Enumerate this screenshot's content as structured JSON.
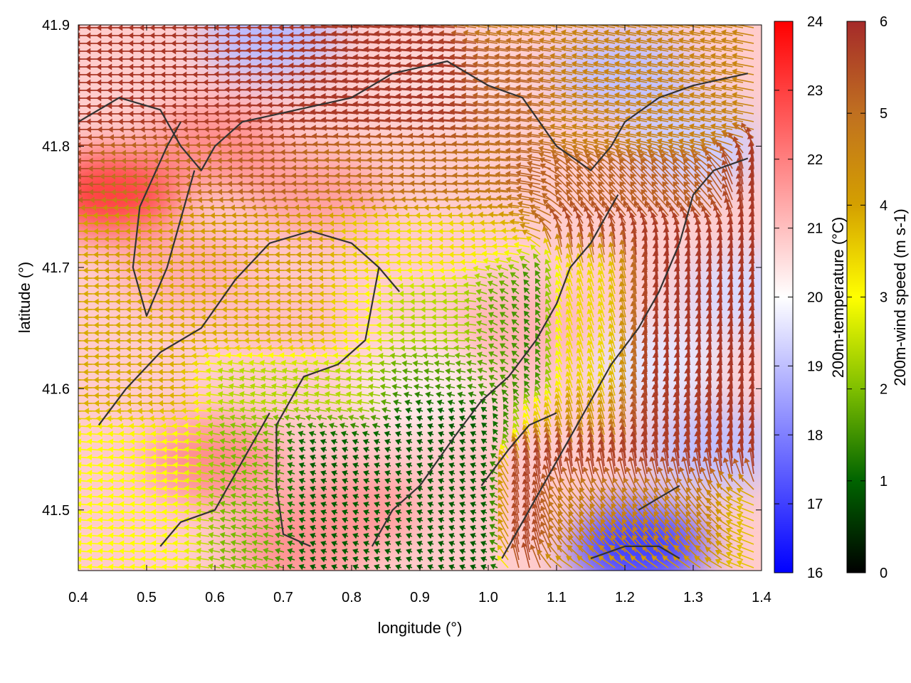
{
  "chart_data": {
    "type": "heatmap",
    "title": "",
    "xlabel": "longitude (°)",
    "ylabel": "latitude (°)",
    "xlim": [
      0.4,
      1.4
    ],
    "ylim": [
      41.45,
      41.9
    ],
    "x_ticks": [
      "0.4",
      "0.5",
      "0.6",
      "0.7",
      "0.8",
      "0.9",
      "1.0",
      "1.1",
      "1.2",
      "1.3",
      "1.4"
    ],
    "y_ticks": [
      "41.5",
      "41.6",
      "41.7",
      "41.8",
      "41.9"
    ],
    "grid": false,
    "series": [
      {
        "name": "200m-temperature (°C)",
        "kind": "color field",
        "colorbar": {
          "label": "200m-temperature (°C)",
          "range": [
            16,
            24
          ],
          "ticks": [
            "16",
            "17",
            "18",
            "19",
            "20",
            "21",
            "22",
            "23",
            "24"
          ],
          "colors": [
            "#0000ff",
            "#ffffff",
            "#ff0000"
          ]
        },
        "regions": [
          {
            "lon": 0.45,
            "lat": 41.76,
            "value": 23.0
          },
          {
            "lon": 0.6,
            "lat": 41.8,
            "value": 21.8
          },
          {
            "lon": 0.75,
            "lat": 41.76,
            "value": 21.5
          },
          {
            "lon": 0.55,
            "lat": 41.7,
            "value": 21.3
          },
          {
            "lon": 0.7,
            "lat": 41.66,
            "value": 21.0
          },
          {
            "lon": 0.6,
            "lat": 41.54,
            "value": 21.8
          },
          {
            "lon": 0.8,
            "lat": 41.5,
            "value": 21.6
          },
          {
            "lon": 0.72,
            "lat": 41.47,
            "value": 21.7
          },
          {
            "lon": 0.9,
            "lat": 41.6,
            "value": 20.3
          },
          {
            "lon": 1.05,
            "lat": 41.65,
            "value": 21.2
          },
          {
            "lon": 1.02,
            "lat": 41.52,
            "value": 20.9
          },
          {
            "lon": 0.95,
            "lat": 41.85,
            "value": 20.6
          },
          {
            "lon": 0.68,
            "lat": 41.89,
            "value": 18.9
          },
          {
            "lon": 1.2,
            "lat": 41.86,
            "value": 19.0
          },
          {
            "lon": 1.3,
            "lat": 41.8,
            "value": 19.2
          },
          {
            "lon": 1.25,
            "lat": 41.62,
            "value": 19.6
          },
          {
            "lon": 1.33,
            "lat": 41.55,
            "value": 19.0
          },
          {
            "lon": 1.22,
            "lat": 41.47,
            "value": 17.0
          },
          {
            "lon": 1.38,
            "lat": 41.68,
            "value": 19.4
          }
        ]
      },
      {
        "name": "200m-wind speed (m s-1)",
        "kind": "vector field",
        "colorbar": {
          "label": "200m-wind speed (m s-1)",
          "range": [
            0,
            6
          ],
          "ticks": [
            "0",
            "1",
            "2",
            "3",
            "4",
            "5",
            "6"
          ],
          "colors": [
            "#000000",
            "#006400",
            "#7fbf00",
            "#ffff00",
            "#d4a000",
            "#c07020",
            "#a52a2a"
          ]
        },
        "regions": [
          {
            "lon_range": [
              0.4,
              0.7
            ],
            "lat_range": [
              41.78,
              41.88
            ],
            "direction_deg": 180,
            "speed": 5.8
          },
          {
            "lon_range": [
              0.7,
              1.05
            ],
            "lat_range": [
              41.78,
              41.86
            ],
            "direction_deg": 175,
            "speed": 5.8
          },
          {
            "lon_range": [
              0.5,
              1.0
            ],
            "lat_range": [
              41.72,
              41.78
            ],
            "direction_deg": 180,
            "speed": 4.2
          },
          {
            "lon_range": [
              0.4,
              0.8
            ],
            "lat_range": [
              41.6,
              41.72
            ],
            "direction_deg": 180,
            "speed": 3.9
          },
          {
            "lon_range": [
              0.85,
              1.0
            ],
            "lat_range": [
              41.62,
              41.72
            ],
            "direction_deg": 180,
            "speed": 2.4
          },
          {
            "lon_range": [
              0.65,
              0.95
            ],
            "lat_range": [
              41.47,
              41.6
            ],
            "direction_deg": 160,
            "speed": 0.9
          },
          {
            "lon_range": [
              1.05,
              1.15
            ],
            "lat_range": [
              41.58,
              41.68
            ],
            "direction_deg": 120,
            "speed": 1.0
          },
          {
            "lon_range": [
              1.15,
              1.4
            ],
            "lat_range": [
              41.55,
              41.76
            ],
            "direction_deg": 95,
            "speed": 5.8
          },
          {
            "lon_range": [
              1.1,
              1.3
            ],
            "lat_range": [
              41.48,
              41.56
            ],
            "direction_deg": 100,
            "speed": 5.7
          },
          {
            "lon_range": [
              1.05,
              1.3
            ],
            "lat_range": [
              41.76,
              41.9
            ],
            "direction_deg": 170,
            "speed": 4.6
          },
          {
            "lon_range": [
              1.15,
              1.35
            ],
            "lat_range": [
              41.45,
              41.49
            ],
            "direction_deg": 160,
            "speed": 3.6
          },
          {
            "lon_range": [
              0.45,
              0.65
            ],
            "lat_range": [
              41.45,
              41.55
            ],
            "direction_deg": 175,
            "speed": 3.0
          }
        ]
      },
      {
        "name": "",
        "kind": "contour lines",
        "color": "#333333",
        "lines": [
          [
            [
              0.4,
              41.82
            ],
            [
              0.46,
              41.84
            ],
            [
              0.52,
              41.83
            ],
            [
              0.55,
              41.8
            ],
            [
              0.58,
              41.78
            ],
            [
              0.6,
              41.8
            ],
            [
              0.64,
              41.82
            ],
            [
              0.72,
              41.83
            ],
            [
              0.8,
              41.84
            ],
            [
              0.86,
              41.86
            ],
            [
              0.94,
              41.87
            ],
            [
              1.0,
              41.85
            ],
            [
              1.05,
              41.84
            ],
            [
              1.1,
              41.8
            ],
            [
              1.15,
              41.78
            ],
            [
              1.18,
              41.8
            ],
            [
              1.2,
              41.82
            ],
            [
              1.25,
              41.84
            ],
            [
              1.3,
              41.85
            ],
            [
              1.38,
              41.86
            ]
          ],
          [
            [
              0.57,
              41.78
            ],
            [
              0.55,
              41.74
            ],
            [
              0.53,
              41.7
            ],
            [
              0.5,
              41.66
            ],
            [
              0.48,
              41.7
            ],
            [
              0.49,
              41.75
            ],
            [
              0.53,
              41.8
            ],
            [
              0.55,
              41.82
            ]
          ],
          [
            [
              0.43,
              41.57
            ],
            [
              0.47,
              41.6
            ],
            [
              0.52,
              41.63
            ],
            [
              0.58,
              41.65
            ],
            [
              0.63,
              41.69
            ],
            [
              0.68,
              41.72
            ],
            [
              0.74,
              41.73
            ],
            [
              0.8,
              41.72
            ],
            [
              0.84,
              41.7
            ],
            [
              0.87,
              41.68
            ]
          ],
          [
            [
              0.84,
              41.7
            ],
            [
              0.82,
              41.64
            ],
            [
              0.78,
              41.62
            ],
            [
              0.73,
              41.61
            ],
            [
              0.69,
              41.57
            ],
            [
              0.69,
              41.52
            ],
            [
              0.7,
              41.48
            ],
            [
              0.74,
              41.47
            ]
          ],
          [
            [
              0.52,
              41.47
            ],
            [
              0.55,
              41.49
            ],
            [
              0.6,
              41.5
            ],
            [
              0.63,
              41.53
            ],
            [
              0.66,
              41.56
            ],
            [
              0.68,
              41.58
            ]
          ],
          [
            [
              0.83,
              41.47
            ],
            [
              0.86,
              41.5
            ],
            [
              0.9,
              41.52
            ],
            [
              0.95,
              41.56
            ],
            [
              0.99,
              41.59
            ],
            [
              1.03,
              41.61
            ],
            [
              1.07,
              41.64
            ],
            [
              1.1,
              41.67
            ],
            [
              1.12,
              41.7
            ],
            [
              1.15,
              41.72
            ],
            [
              1.17,
              41.74
            ],
            [
              1.19,
              41.76
            ]
          ],
          [
            [
              1.02,
              41.46
            ],
            [
              1.06,
              41.5
            ],
            [
              1.1,
              41.54
            ],
            [
              1.14,
              41.58
            ],
            [
              1.18,
              41.62
            ],
            [
              1.22,
              41.65
            ],
            [
              1.25,
              41.68
            ],
            [
              1.28,
              41.72
            ],
            [
              1.3,
              41.76
            ],
            [
              1.33,
              41.78
            ],
            [
              1.38,
              41.79
            ]
          ],
          [
            [
              1.15,
              41.46
            ],
            [
              1.2,
              41.47
            ],
            [
              1.25,
              41.47
            ],
            [
              1.28,
              41.46
            ]
          ],
          [
            [
              1.22,
              41.5
            ],
            [
              1.25,
              41.51
            ],
            [
              1.28,
              41.52
            ]
          ],
          [
            [
              0.99,
              41.52
            ],
            [
              1.03,
              41.55
            ],
            [
              1.06,
              41.57
            ],
            [
              1.1,
              41.58
            ]
          ]
        ]
      }
    ],
    "legend": "none"
  }
}
